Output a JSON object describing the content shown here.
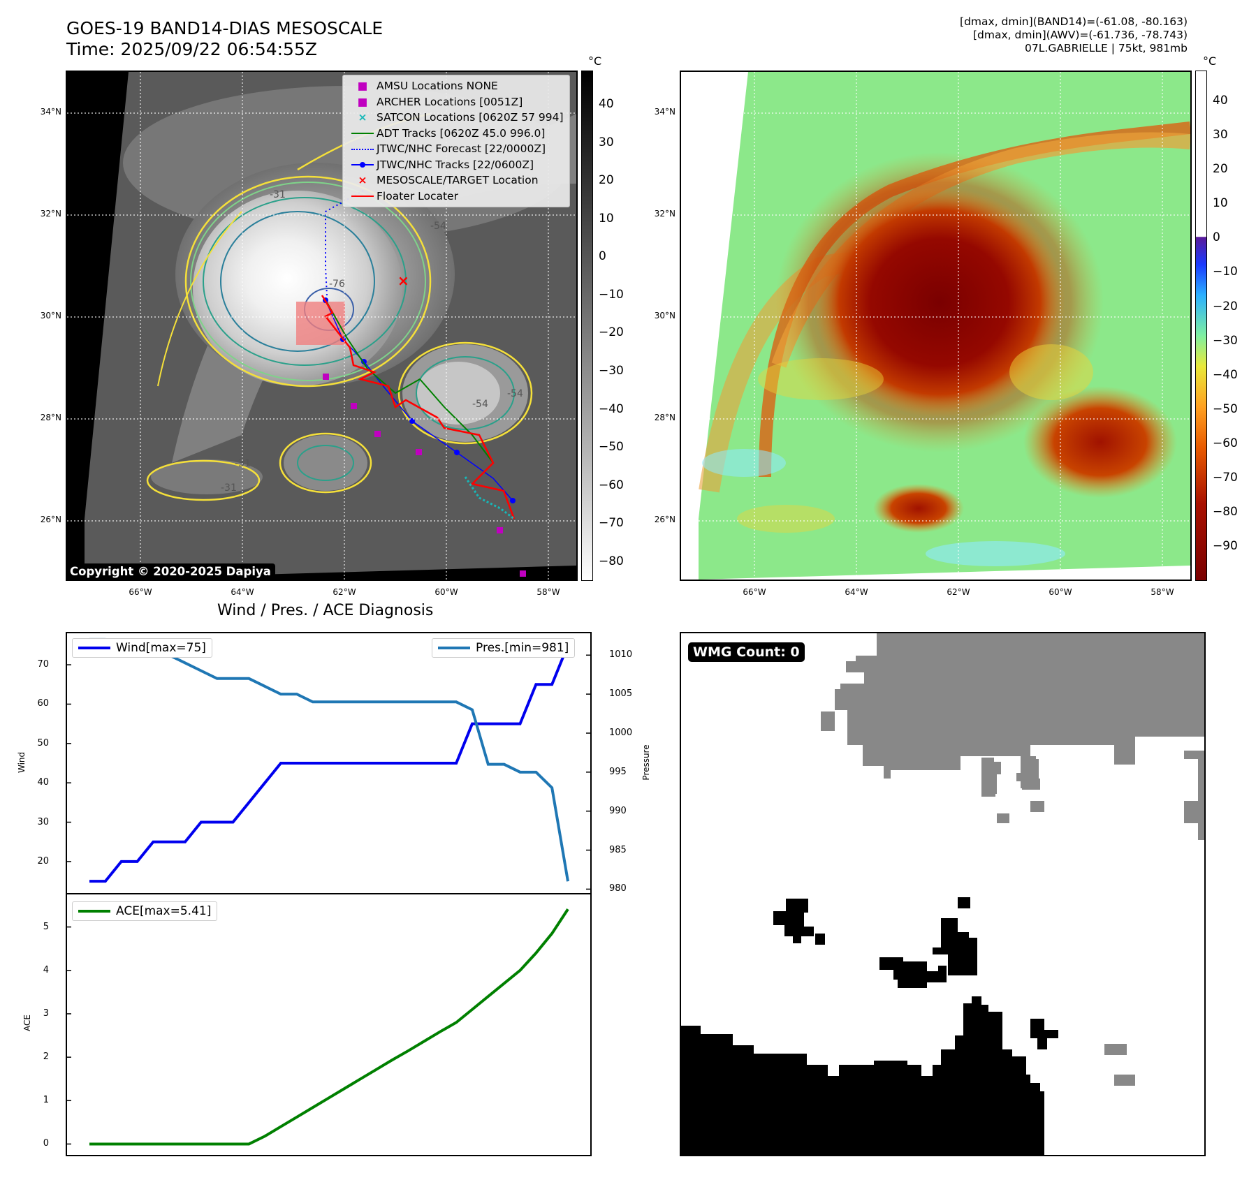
{
  "header": {
    "title_line1": "GOES-19 BAND14-DIAS MESOSCALE",
    "title_line2": "Time: 2025/09/22 06:54:55Z",
    "info_line1": "[dmax, dmin](BAND14)=(-61.08, -80.163)",
    "info_line2": "[dmax, dmin](AWV)=(-61.736, -78.743)",
    "info_line3": "07L.GABRIELLE | 75kt, 981mb"
  },
  "map": {
    "lat_labels": [
      "34°N",
      "32°N",
      "30°N",
      "28°N",
      "26°N"
    ],
    "lat_values": [
      34,
      32,
      30,
      28,
      26
    ],
    "lon_labels": [
      "66°W",
      "64°W",
      "62°W",
      "60°W",
      "58°W"
    ],
    "lon_values": [
      -66,
      -64,
      -62,
      -60,
      -58
    ],
    "copyright": "Copyright © 2020-2025 Dapiya",
    "contour_labels": [
      "-76",
      "-54",
      "-54",
      "-31",
      "-31",
      "-31",
      "-54"
    ]
  },
  "legend": {
    "items": [
      {
        "label": "AMSU Locations NONE",
        "symbol": "■",
        "color": "#c000c0"
      },
      {
        "label": "ARCHER Locations [0051Z]",
        "symbol": "■",
        "color": "#c000c0"
      },
      {
        "label": "SATCON Locations [0620Z 57 994]",
        "symbol": "×",
        "color": "#17b8b8"
      },
      {
        "label": "ADT Tracks [0620Z 45.0 996.0]",
        "symbol": "line",
        "color": "#008000"
      },
      {
        "label": "JTWC/NHC Forecast [22/0000Z]",
        "symbol": "dotted",
        "color": "#0000ff"
      },
      {
        "label": "JTWC/NHC Tracks [22/0600Z]",
        "symbol": "dotline",
        "color": "#0000ff"
      },
      {
        "label": "MESOSCALE/TARGET Location",
        "symbol": "×",
        "color": "#ff0000"
      },
      {
        "label": "Floater Locater",
        "symbol": "line",
        "color": "#ff0000"
      }
    ]
  },
  "colorbar_left": {
    "unit": "°C",
    "ticks": [
      "40",
      "30",
      "20",
      "10",
      "0",
      "−10",
      "−20",
      "−30",
      "−40",
      "−50",
      "−60",
      "−70",
      "−80"
    ],
    "tick_values": [
      40,
      30,
      20,
      10,
      0,
      -10,
      -20,
      -30,
      -40,
      -50,
      -60,
      -70,
      -80
    ],
    "range": [
      -85,
      49
    ]
  },
  "colorbar_right": {
    "unit": "°C",
    "ticks": [
      "40",
      "30",
      "20",
      "10",
      "0",
      "−10",
      "−20",
      "−30",
      "−40",
      "−50",
      "−60",
      "−70",
      "−80",
      "−90"
    ],
    "tick_values": [
      40,
      30,
      20,
      10,
      0,
      -10,
      -20,
      -30,
      -40,
      -50,
      -60,
      -70,
      -80,
      -90
    ],
    "range": [
      -100,
      49
    ]
  },
  "diagnosis": {
    "title": "Wind / Pres. / ACE Diagnosis",
    "wind_legend": "Wind[max=75]",
    "pres_legend": "Pres.[min=981]",
    "ace_legend": "ACE[max=5.41]",
    "wind_ylabel": "Wind",
    "pres_ylabel": "Pressure",
    "ace_ylabel": "ACE",
    "wind_color": "#0000ee",
    "pres_color": "#1f77b4",
    "ace_color": "#008000"
  },
  "chart_data": [
    {
      "type": "line",
      "name": "wind",
      "x": [
        0,
        1,
        2,
        3,
        4,
        5,
        6,
        7,
        8,
        9,
        10,
        11,
        12,
        13,
        14,
        15,
        16,
        17,
        18,
        19,
        20,
        21,
        22,
        23,
        24,
        25,
        26,
        27,
        28,
        29,
        30
      ],
      "values": [
        15,
        15,
        20,
        20,
        25,
        25,
        25,
        30,
        30,
        30,
        35,
        40,
        45,
        45,
        45,
        45,
        45,
        45,
        45,
        45,
        45,
        45,
        45,
        45,
        55,
        55,
        55,
        55,
        65,
        65,
        75
      ],
      "ylim": [
        12,
        78
      ],
      "yticks": [
        20,
        30,
        40,
        50,
        60,
        70
      ]
    },
    {
      "type": "line",
      "name": "pressure",
      "x": [
        0,
        1,
        2,
        3,
        4,
        5,
        6,
        7,
        8,
        9,
        10,
        11,
        12,
        13,
        14,
        15,
        16,
        17,
        18,
        19,
        20,
        21,
        22,
        23,
        24,
        25,
        26,
        27,
        28,
        29,
        30
      ],
      "values": [
        1012,
        1012,
        1011,
        1011,
        1010,
        1010,
        1009,
        1008,
        1007,
        1007,
        1007,
        1006,
        1005,
        1005,
        1004,
        1004,
        1004,
        1004,
        1004,
        1004,
        1004,
        1004,
        1004,
        1004,
        1003,
        996,
        996,
        995,
        995,
        993,
        981
      ],
      "ylim": [
        979.5,
        1012.8
      ],
      "yticks": [
        980,
        985,
        990,
        995,
        1000,
        1005,
        1010
      ]
    },
    {
      "type": "line",
      "name": "ace",
      "x": [
        0,
        1,
        2,
        3,
        4,
        5,
        6,
        7,
        8,
        9,
        10,
        11,
        12,
        13,
        14,
        15,
        16,
        17,
        18,
        19,
        20,
        21,
        22,
        23,
        24,
        25,
        26,
        27,
        28,
        29,
        30
      ],
      "values": [
        0,
        0,
        0,
        0,
        0,
        0,
        0,
        0,
        0,
        0,
        0,
        0.18,
        0.4,
        0.62,
        0.84,
        1.06,
        1.28,
        1.5,
        1.72,
        1.94,
        2.15,
        2.37,
        2.59,
        2.8,
        3.1,
        3.4,
        3.7,
        4.0,
        4.4,
        4.85,
        5.41
      ],
      "ylim": [
        -0.25,
        5.75
      ],
      "yticks": [
        0,
        1,
        2,
        3,
        4,
        5
      ]
    }
  ],
  "wmg": {
    "label": "WMG Count: 0"
  }
}
